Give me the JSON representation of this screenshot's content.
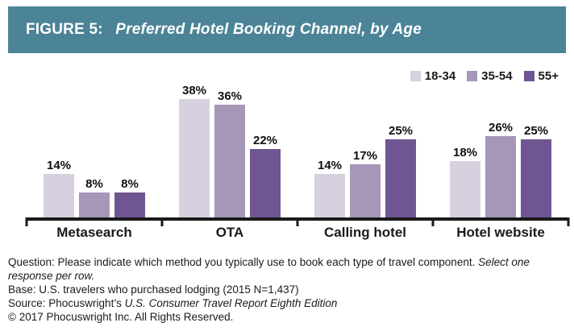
{
  "header": {
    "figure_label": "FIGURE 5: ",
    "title": "Preferred Hotel Booking Channel, by Age"
  },
  "chart_data": {
    "type": "bar",
    "title": "Preferred Hotel Booking Channel, by Age",
    "categories": [
      "Metasearch",
      "OTA",
      "Calling hotel",
      "Hotel website"
    ],
    "series": [
      {
        "name": "18-34",
        "color": "#D7D0DF",
        "values": [
          14,
          38,
          14,
          18
        ]
      },
      {
        "name": "35-54",
        "color": "#A697B9",
        "values": [
          8,
          36,
          17,
          26
        ]
      },
      {
        "name": "55+",
        "color": "#6F5692",
        "values": [
          8,
          22,
          25,
          25
        ]
      }
    ],
    "value_suffix": "%",
    "ylim": [
      0,
      40
    ],
    "grid": false,
    "legend_position": "top-right",
    "xlabel": "",
    "ylabel": ""
  },
  "colors": {
    "header_bg": "#4B8497",
    "axis": "#1A1A1A",
    "bar_label_text": "#111111"
  },
  "footnotes": {
    "lines": [
      {
        "segments": [
          {
            "text": "Question: Please indicate which method you typically use to book each type of travel component. ",
            "italic": false
          },
          {
            "text": "Select one response per row.",
            "italic": true
          }
        ]
      },
      {
        "segments": [
          {
            "text": "Base: U.S. travelers who purchased lodging (2015 N=1,437)",
            "italic": false
          }
        ]
      },
      {
        "segments": [
          {
            "text": "Source: Phocuswright’s ",
            "italic": false
          },
          {
            "text": "U.S. Consumer Travel Report Eighth Edition",
            "italic": true
          }
        ]
      },
      {
        "segments": [
          {
            "text": "© 2017 Phocuswright Inc. All Rights Reserved.",
            "italic": false
          }
        ]
      }
    ]
  }
}
